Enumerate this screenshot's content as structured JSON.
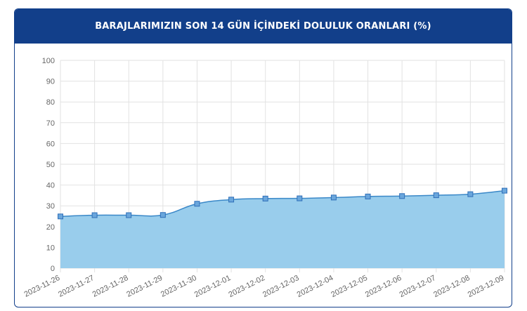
{
  "header": {
    "title": "BARAJLARIMIZIN SON 14 GÜN İÇİNDEKİ DOLULUK ORANLARI (%)"
  },
  "colors": {
    "header_bg": "#123f8a",
    "fill": "#99cdec",
    "line": "#3a88c8",
    "marker": "#2f6fb8",
    "grid": "#e2e2e2"
  },
  "chart_data": {
    "type": "area",
    "title": "BARAJLARIMIZIN SON 14 GÜN İÇİNDEKİ DOLULUK ORANLARI (%)",
    "xlabel": "",
    "ylabel": "",
    "categories": [
      "2023-11-26",
      "2023-11-27",
      "2023-11-28",
      "2023-11-29",
      "2023-11-30",
      "2023-12-01",
      "2023-12-02",
      "2023-12-03",
      "2023-12-04",
      "2023-12-05",
      "2023-12-06",
      "2023-12-07",
      "2023-12-08",
      "2023-12-09"
    ],
    "series": [
      {
        "name": "",
        "values": [
          24.9,
          25.5,
          25.5,
          25.6,
          31.0,
          33.0,
          33.5,
          33.6,
          34.0,
          34.5,
          34.7,
          35.1,
          35.6,
          37.3
        ]
      }
    ],
    "ylim": [
      0,
      100
    ],
    "yticks": [
      0,
      10,
      20,
      30,
      40,
      50,
      60,
      70,
      80,
      90,
      100
    ],
    "grid": true,
    "legend": "none"
  }
}
